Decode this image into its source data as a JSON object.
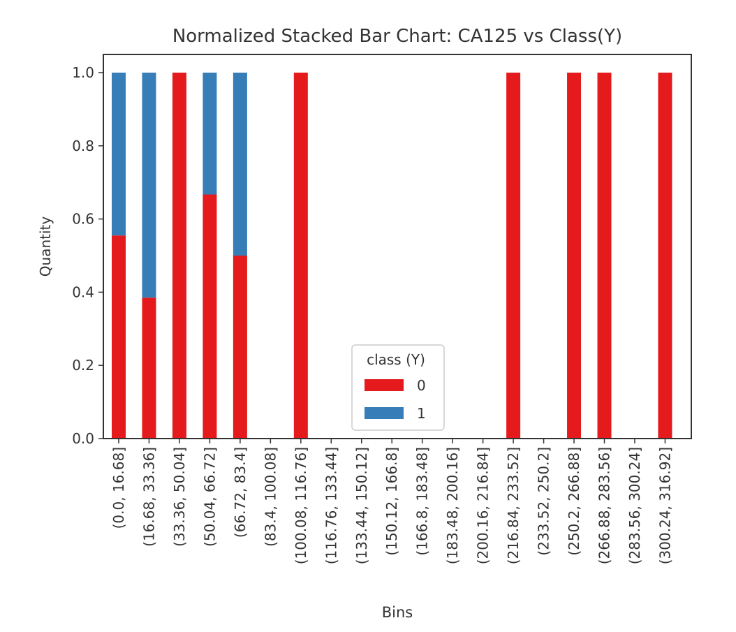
{
  "chart_data": {
    "type": "bar",
    "stacked": true,
    "title": "Normalized Stacked Bar Chart: CA125 vs Class(Y)",
    "xlabel": "Bins",
    "ylabel": "Quantity",
    "ylim": [
      0,
      1.0
    ],
    "yticks": [
      "0.0",
      "0.2",
      "0.4",
      "0.6",
      "0.8",
      "1.0"
    ],
    "categories": [
      "(0.0, 16.68]",
      "(16.68, 33.36]",
      "(33.36, 50.04]",
      "(50.04, 66.72]",
      "(66.72, 83.4]",
      "(83.4, 100.08]",
      "(100.08, 116.76]",
      "(116.76, 133.44]",
      "(133.44, 150.12]",
      "(150.12, 166.8]",
      "(166.8, 183.48]",
      "(183.48, 200.16]",
      "(200.16, 216.84]",
      "(216.84, 233.52]",
      "(233.52, 250.2]",
      "(250.2, 266.88]",
      "(266.88, 283.56]",
      "(283.56, 300.24]",
      "(300.24, 316.92]"
    ],
    "series": [
      {
        "name": "0",
        "color": "#e41a1c",
        "values": [
          0.555,
          0.385,
          1.0,
          0.667,
          0.5,
          0,
          1.0,
          0,
          0,
          0,
          0,
          0,
          0,
          1.0,
          0,
          1.0,
          1.0,
          0,
          1.0
        ]
      },
      {
        "name": "1",
        "color": "#377eb8",
        "values": [
          0.445,
          0.615,
          0,
          0.333,
          0.5,
          0,
          0,
          0,
          0,
          0,
          0,
          0,
          0,
          0,
          0,
          0,
          0,
          0,
          0
        ]
      }
    ],
    "legend": {
      "title": "class (Y)",
      "placement": "lower center"
    },
    "grid": false
  }
}
